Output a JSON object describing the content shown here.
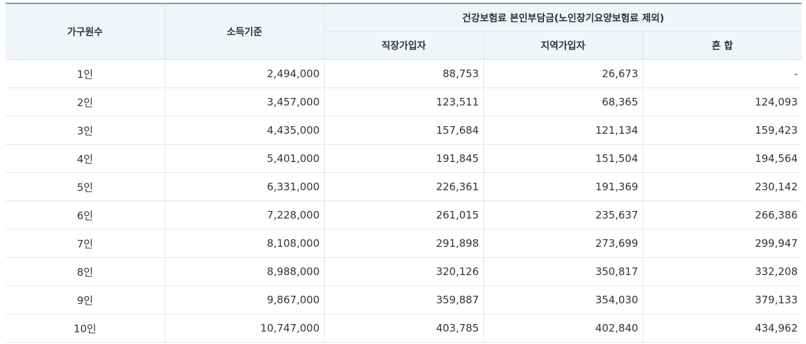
{
  "table": {
    "headers": {
      "household": "가구원수",
      "income": "소득기준",
      "premium_group": "건강보험료 본인부담금(노인장기요양보험료 제외)",
      "employee": "직장가입자",
      "local": "지역가입자",
      "mixed": "혼 합"
    },
    "rows": [
      {
        "household": "1인",
        "income": "2,494,000",
        "employee": "88,753",
        "local": "26,673",
        "mixed": "-"
      },
      {
        "household": "2인",
        "income": "3,457,000",
        "employee": "123,511",
        "local": "68,365",
        "mixed": "124,093"
      },
      {
        "household": "3인",
        "income": "4,435,000",
        "employee": "157,684",
        "local": "121,134",
        "mixed": "159,423"
      },
      {
        "household": "4인",
        "income": "5,401,000",
        "employee": "191,845",
        "local": "151,504",
        "mixed": "194,564"
      },
      {
        "household": "5인",
        "income": "6,331,000",
        "employee": "226,361",
        "local": "191,369",
        "mixed": "230,142"
      },
      {
        "household": "6인",
        "income": "7,228,000",
        "employee": "261,015",
        "local": "235,637",
        "mixed": "266,386"
      },
      {
        "household": "7인",
        "income": "8,108,000",
        "employee": "291,898",
        "local": "273,699",
        "mixed": "299,947"
      },
      {
        "household": "8인",
        "income": "8,988,000",
        "employee": "320,126",
        "local": "350,817",
        "mixed": "332,208"
      },
      {
        "household": "9인",
        "income": "9,867,000",
        "employee": "359,887",
        "local": "354,030",
        "mixed": "379,133"
      },
      {
        "household": "10인",
        "income": "10,747,000",
        "employee": "403,785",
        "local": "402,840",
        "mixed": "434,962"
      }
    ]
  }
}
